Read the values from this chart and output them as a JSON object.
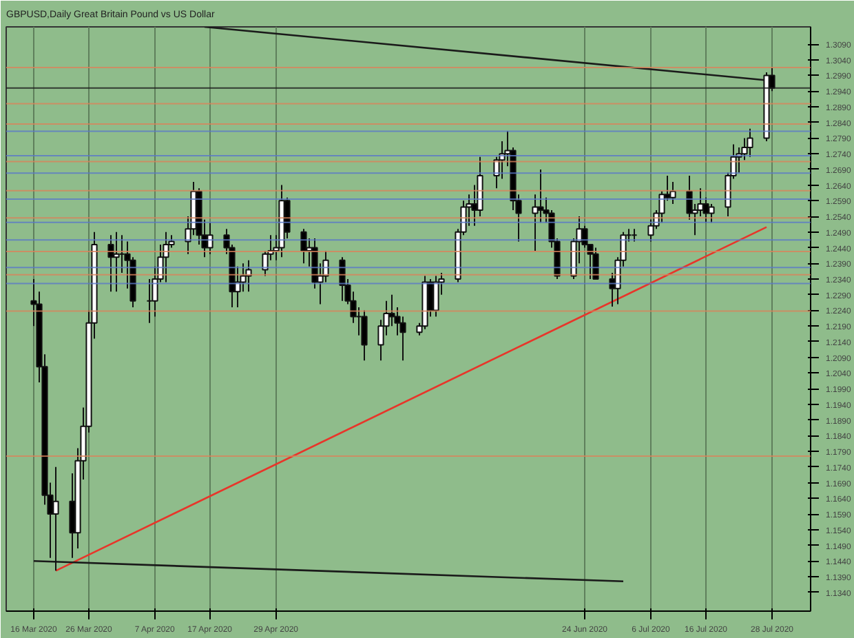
{
  "chart_data": {
    "type": "candlestick",
    "title": "GBPUSD,Daily  Great Britain Pound vs US Dollar",
    "x": [
      "2020-03-16",
      "2020-03-17",
      "2020-03-18",
      "2020-03-19",
      "2020-03-20",
      "2020-03-23",
      "2020-03-24",
      "2020-03-25",
      "2020-03-26",
      "2020-03-27",
      "2020-03-30",
      "2020-03-31",
      "2020-04-01",
      "2020-04-02",
      "2020-04-03",
      "2020-04-06",
      "2020-04-07",
      "2020-04-08",
      "2020-04-09",
      "2020-04-10",
      "2020-04-13",
      "2020-04-14",
      "2020-04-15",
      "2020-04-16",
      "2020-04-17",
      "2020-04-20",
      "2020-04-21",
      "2020-04-22",
      "2020-04-23",
      "2020-04-24",
      "2020-04-27",
      "2020-04-28",
      "2020-04-29",
      "2020-04-30",
      "2020-05-01",
      "2020-05-04",
      "2020-05-05",
      "2020-05-06",
      "2020-05-07",
      "2020-05-08",
      "2020-05-11",
      "2020-05-12",
      "2020-05-13",
      "2020-05-14",
      "2020-05-15",
      "2020-05-18",
      "2020-05-19",
      "2020-05-20",
      "2020-05-21",
      "2020-05-22",
      "2020-05-25",
      "2020-05-26",
      "2020-05-27",
      "2020-05-28",
      "2020-05-29",
      "2020-06-01",
      "2020-06-02",
      "2020-06-03",
      "2020-06-04",
      "2020-06-05",
      "2020-06-08",
      "2020-06-09",
      "2020-06-10",
      "2020-06-11",
      "2020-06-12",
      "2020-06-15",
      "2020-06-16",
      "2020-06-17",
      "2020-06-18",
      "2020-06-19",
      "2020-06-22",
      "2020-06-23",
      "2020-06-24",
      "2020-06-25",
      "2020-06-26",
      "2020-06-29",
      "2020-06-30",
      "2020-07-01",
      "2020-07-02",
      "2020-07-03",
      "2020-07-06",
      "2020-07-07",
      "2020-07-08",
      "2020-07-09",
      "2020-07-10",
      "2020-07-13",
      "2020-07-14",
      "2020-07-15",
      "2020-07-16",
      "2020-07-17",
      "2020-07-20",
      "2020-07-21",
      "2020-07-22",
      "2020-07-23",
      "2020-07-24",
      "2020-07-27",
      "2020-07-28"
    ],
    "ohlc": [
      [
        1.227,
        1.234,
        1.219,
        1.226
      ],
      [
        1.226,
        1.23,
        1.201,
        1.206
      ],
      [
        1.206,
        1.21,
        1.162,
        1.165
      ],
      [
        1.165,
        1.169,
        1.145,
        1.159
      ],
      [
        1.159,
        1.174,
        1.1409,
        1.163
      ],
      [
        1.163,
        1.172,
        1.145,
        1.153
      ],
      [
        1.153,
        1.18,
        1.148,
        1.176
      ],
      [
        1.176,
        1.193,
        1.17,
        1.187
      ],
      [
        1.187,
        1.224,
        1.185,
        1.22
      ],
      [
        1.22,
        1.249,
        1.215,
        1.245
      ],
      [
        1.245,
        1.248,
        1.23,
        1.241
      ],
      [
        1.241,
        1.249,
        1.23,
        1.242
      ],
      [
        1.242,
        1.248,
        1.236,
        1.242
      ],
      [
        1.242,
        1.246,
        1.231,
        1.24
      ],
      [
        1.24,
        1.241,
        1.225,
        1.227
      ],
      [
        1.227,
        1.234,
        1.22,
        1.227
      ],
      [
        1.227,
        1.238,
        1.222,
        1.234
      ],
      [
        1.234,
        1.245,
        1.233,
        1.241
      ],
      [
        1.241,
        1.249,
        1.233,
        1.245
      ],
      [
        1.245,
        1.248,
        1.244,
        1.246
      ],
      [
        1.246,
        1.254,
        1.242,
        1.25
      ],
      [
        1.25,
        1.265,
        1.248,
        1.262
      ],
      [
        1.262,
        1.263,
        1.245,
        1.248
      ],
      [
        1.248,
        1.253,
        1.241,
        1.244
      ],
      [
        1.244,
        1.252,
        1.242,
        1.248
      ],
      [
        1.248,
        1.25,
        1.242,
        1.244
      ],
      [
        1.244,
        1.245,
        1.225,
        1.23
      ],
      [
        1.23,
        1.238,
        1.225,
        1.233
      ],
      [
        1.233,
        1.239,
        1.23,
        1.235
      ],
      [
        1.235,
        1.24,
        1.23,
        1.237
      ],
      [
        1.237,
        1.243,
        1.235,
        1.242
      ],
      [
        1.242,
        1.248,
        1.24,
        1.243
      ],
      [
        1.243,
        1.248,
        1.24,
        1.244
      ],
      [
        1.244,
        1.264,
        1.241,
        1.259
      ],
      [
        1.259,
        1.26,
        1.247,
        1.249
      ],
      [
        1.249,
        1.25,
        1.239,
        1.243
      ],
      [
        1.243,
        1.247,
        1.238,
        1.244
      ],
      [
        1.244,
        1.247,
        1.231,
        1.233
      ],
      [
        1.233,
        1.239,
        1.226,
        1.235
      ],
      [
        1.235,
        1.243,
        1.233,
        1.24
      ],
      [
        1.24,
        1.241,
        1.227,
        1.232
      ],
      [
        1.232,
        1.234,
        1.226,
        1.227
      ],
      [
        1.227,
        1.23,
        1.22,
        1.222
      ],
      [
        1.222,
        1.225,
        1.216,
        1.222
      ],
      [
        1.222,
        1.224,
        1.208,
        1.213
      ],
      [
        1.213,
        1.221,
        1.208,
        1.219
      ],
      [
        1.219,
        1.227,
        1.216,
        1.223
      ],
      [
        1.223,
        1.229,
        1.219,
        1.222
      ],
      [
        1.222,
        1.225,
        1.216,
        1.22
      ],
      [
        1.22,
        1.222,
        1.208,
        1.217
      ],
      [
        1.217,
        1.22,
        1.216,
        1.219
      ],
      [
        1.219,
        1.235,
        1.218,
        1.233
      ],
      [
        1.233,
        1.234,
        1.222,
        1.224
      ],
      [
        1.224,
        1.235,
        1.222,
        1.233
      ],
      [
        1.233,
        1.236,
        1.229,
        1.234
      ],
      [
        1.234,
        1.25,
        1.233,
        1.249
      ],
      [
        1.249,
        1.259,
        1.248,
        1.257
      ],
      [
        1.257,
        1.261,
        1.251,
        1.258
      ],
      [
        1.258,
        1.264,
        1.251,
        1.256
      ],
      [
        1.256,
        1.273,
        1.254,
        1.267
      ],
      [
        1.267,
        1.273,
        1.263,
        1.272
      ],
      [
        1.272,
        1.278,
        1.266,
        1.274
      ],
      [
        1.274,
        1.2813,
        1.27,
        1.275
      ],
      [
        1.275,
        1.276,
        1.256,
        1.259
      ],
      [
        1.259,
        1.261,
        1.246,
        1.255
      ],
      [
        1.255,
        1.261,
        1.243,
        1.257
      ],
      [
        1.257,
        1.269,
        1.252,
        1.256
      ],
      [
        1.256,
        1.26,
        1.252,
        1.255
      ],
      [
        1.255,
        1.256,
        1.244,
        1.246
      ],
      [
        1.246,
        1.247,
        1.234,
        1.235
      ],
      [
        1.235,
        1.247,
        1.234,
        1.246
      ],
      [
        1.246,
        1.254,
        1.239,
        1.25
      ],
      [
        1.25,
        1.251,
        1.244,
        1.245
      ],
      [
        1.245,
        1.245,
        1.234,
        1.242
      ],
      [
        1.242,
        1.244,
        1.234,
        1.234
      ],
      [
        1.234,
        1.236,
        1.2252,
        1.231
      ],
      [
        1.231,
        1.241,
        1.226,
        1.24
      ],
      [
        1.24,
        1.249,
        1.238,
        1.248
      ],
      [
        1.248,
        1.25,
        1.246,
        1.248
      ],
      [
        1.248,
        1.25,
        1.246,
        1.248
      ],
      [
        1.248,
        1.253,
        1.246,
        1.251
      ],
      [
        1.251,
        1.256,
        1.25,
        1.255
      ],
      [
        1.255,
        1.262,
        1.252,
        1.261
      ],
      [
        1.261,
        1.267,
        1.259,
        1.26
      ],
      [
        1.26,
        1.265,
        1.258,
        1.262
      ],
      [
        1.262,
        1.267,
        1.253,
        1.255
      ],
      [
        1.255,
        1.258,
        1.248,
        1.256
      ],
      [
        1.256,
        1.263,
        1.254,
        1.258
      ],
      [
        1.258,
        1.26,
        1.252,
        1.255
      ],
      [
        1.255,
        1.258,
        1.252,
        1.257
      ],
      [
        1.257,
        1.268,
        1.254,
        1.267
      ],
      [
        1.267,
        1.277,
        1.266,
        1.273
      ],
      [
        1.273,
        1.276,
        1.268,
        1.274
      ],
      [
        1.274,
        1.279,
        1.272,
        1.276
      ],
      [
        1.276,
        1.282,
        1.273,
        1.279
      ],
      [
        1.279,
        1.3,
        1.278,
        1.299
      ],
      [
        1.299,
        1.3015,
        1.294,
        1.295
      ]
    ],
    "series": [
      {
        "type": "line",
        "color": "#e8352a",
        "x": [
          "2020-03-20",
          "2020-07-27"
        ],
        "values": [
          1.1409,
          1.2506
        ]
      },
      {
        "type": "line",
        "color": "#1a1a1a",
        "x": [
          "2020-04-16",
          "2020-07-28"
        ],
        "values": [
          1.3145,
          1.2973
        ]
      },
      {
        "type": "line",
        "color": "#1a1a1a",
        "x": [
          "2020-03-16",
          "2020-07-01"
        ],
        "values": [
          1.144,
          1.1375
        ]
      }
    ],
    "ref_lines": [
      {
        "axis": "y",
        "value": 1.295,
        "color": "#1a1a1a"
      },
      {
        "axis": "y",
        "value": 1.3015,
        "color": "#d9825a"
      },
      {
        "axis": "y",
        "value": 1.29,
        "color": "#d9825a"
      },
      {
        "axis": "y",
        "value": 1.2835,
        "color": "#d9825a"
      },
      {
        "axis": "y",
        "value": 1.2812,
        "color": "#5a78c8"
      },
      {
        "axis": "y",
        "value": 1.2734,
        "color": "#5a78c8"
      },
      {
        "axis": "y",
        "value": 1.2715,
        "color": "#d9825a"
      },
      {
        "axis": "y",
        "value": 1.2678,
        "color": "#5a78c8"
      },
      {
        "axis": "y",
        "value": 1.2622,
        "color": "#d9825a"
      },
      {
        "axis": "y",
        "value": 1.2595,
        "color": "#5a78c8"
      },
      {
        "axis": "y",
        "value": 1.2535,
        "color": "#d9825a"
      },
      {
        "axis": "y",
        "value": 1.2521,
        "color": "#5a78c8"
      },
      {
        "axis": "y",
        "value": 1.2465,
        "color": "#5a78c8"
      },
      {
        "axis": "y",
        "value": 1.2428,
        "color": "#d9825a"
      },
      {
        "axis": "y",
        "value": 1.2377,
        "color": "#5a78c8"
      },
      {
        "axis": "y",
        "value": 1.2354,
        "color": "#d9825a"
      },
      {
        "axis": "y",
        "value": 1.2326,
        "color": "#5a78c8"
      },
      {
        "axis": "y",
        "value": 1.2238,
        "color": "#d9825a"
      },
      {
        "axis": "y",
        "value": 1.1775,
        "color": "#d9825a"
      }
    ],
    "ylim": [
      1.128,
      1.3145
    ],
    "yticks": [
      {
        "value": 1.309,
        "label": "1.3090"
      },
      {
        "value": 1.304,
        "label": "1.3040"
      },
      {
        "value": 1.299,
        "label": "1.2990"
      },
      {
        "value": 1.294,
        "label": "1.2940"
      },
      {
        "value": 1.289,
        "label": "1.2890"
      },
      {
        "value": 1.284,
        "label": "1.2840"
      },
      {
        "value": 1.279,
        "label": "1.2790"
      },
      {
        "value": 1.274,
        "label": "1.2740"
      },
      {
        "value": 1.269,
        "label": "1.2690"
      },
      {
        "value": 1.264,
        "label": "1.2640"
      },
      {
        "value": 1.259,
        "label": "1.2590"
      },
      {
        "value": 1.254,
        "label": "1.2540"
      },
      {
        "value": 1.249,
        "label": "1.2490"
      },
      {
        "value": 1.244,
        "label": "1.2440"
      },
      {
        "value": 1.239,
        "label": "1.2390"
      },
      {
        "value": 1.234,
        "label": "1.2340"
      },
      {
        "value": 1.229,
        "label": "1.2290"
      },
      {
        "value": 1.224,
        "label": "1.2240"
      },
      {
        "value": 1.219,
        "label": "1.2190"
      },
      {
        "value": 1.214,
        "label": "1.2140"
      },
      {
        "value": 1.209,
        "label": "1.2090"
      },
      {
        "value": 1.204,
        "label": "1.2040"
      },
      {
        "value": 1.199,
        "label": "1.1990"
      },
      {
        "value": 1.194,
        "label": "1.1940"
      },
      {
        "value": 1.189,
        "label": "1.1890"
      },
      {
        "value": 1.184,
        "label": "1.1840"
      },
      {
        "value": 1.179,
        "label": "1.1790"
      },
      {
        "value": 1.174,
        "label": "1.1740"
      },
      {
        "value": 1.169,
        "label": "1.1690"
      },
      {
        "value": 1.164,
        "label": "1.1640"
      },
      {
        "value": 1.159,
        "label": "1.1590"
      },
      {
        "value": 1.154,
        "label": "1.1540"
      },
      {
        "value": 1.149,
        "label": "1.1490"
      },
      {
        "value": 1.144,
        "label": "1.1440"
      },
      {
        "value": 1.139,
        "label": "1.1390"
      },
      {
        "value": 1.134,
        "label": "1.1340"
      }
    ],
    "xlim": [
      "2020-03-11",
      "2020-08-04"
    ],
    "xticks": [
      {
        "value": "2020-03-16",
        "label": "16 Mar 2020"
      },
      {
        "value": "2020-03-26",
        "label": "26 Mar 2020"
      },
      {
        "value": "2020-04-07",
        "label": "7 Apr 2020"
      },
      {
        "value": "2020-04-17",
        "label": "17 Apr 2020"
      },
      {
        "value": "2020-04-29",
        "label": "29 Apr 2020"
      },
      {
        "value": "2020-06-24",
        "label": "24 Jun 2020"
      },
      {
        "value": "2020-07-06",
        "label": "6 Jul 2020"
      },
      {
        "value": "2020-07-16",
        "label": "16 Jul 2020"
      },
      {
        "value": "2020-07-28",
        "label": "28 Jul 2020"
      }
    ],
    "grid": "x"
  }
}
